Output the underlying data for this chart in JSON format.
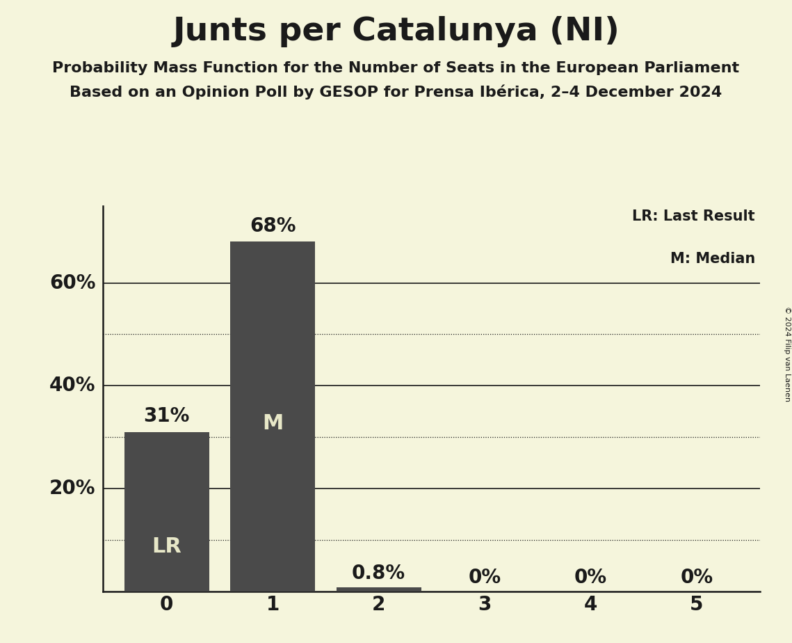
{
  "title": "Junts per Catalunya (NI)",
  "subtitle1": "Probability Mass Function for the Number of Seats in the European Parliament",
  "subtitle2": "Based on an Opinion Poll by GESOP for Prensa Ibérica, 2–4 December 2024",
  "copyright": "© 2024 Filip van Laenen",
  "categories": [
    0,
    1,
    2,
    3,
    4,
    5
  ],
  "values": [
    31.0,
    68.0,
    0.8,
    0.0,
    0.0,
    0.0
  ],
  "bar_color": "#4a4a4a",
  "background_color": "#f5f5dc",
  "text_color": "#1a1a1a",
  "bar_text_color": "#e8e8c8",
  "ylim": [
    0,
    75
  ],
  "yticks_solid": [
    20,
    40,
    60
  ],
  "yticks_dotted": [
    10,
    30,
    50
  ],
  "lr_bar": 0,
  "median_bar": 1,
  "legend_lr": "LR: Last Result",
  "legend_m": "M: Median",
  "title_fontsize": 34,
  "subtitle_fontsize": 16,
  "axis_label_fontsize": 20,
  "bar_label_fontsize": 20,
  "annotation_fontsize": 22,
  "copyright_fontsize": 8
}
